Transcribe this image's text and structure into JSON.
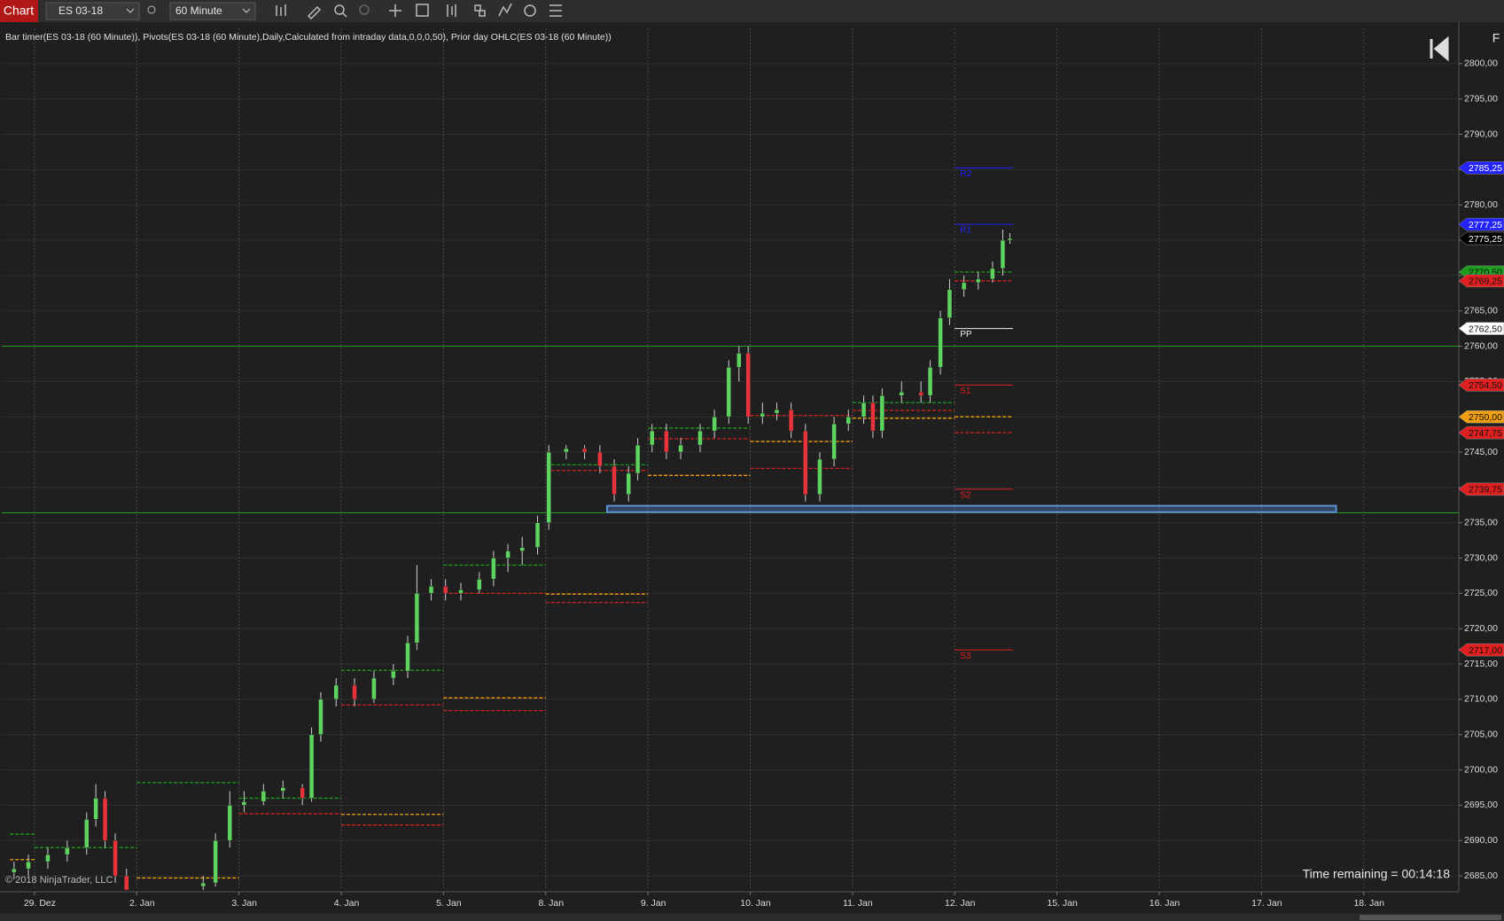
{
  "toolbar": {
    "title": "Chart",
    "instrument": "ES 03-18",
    "interval": "60 Minute"
  },
  "chart_data": {
    "type": "candlestick",
    "indicators": "Bar timer(ES 03-18 (60 Minute)), Pivots(ES 03-18 (60 Minute),Daily,Calculated from intraday data,0,0,0,50), Prior day OHLC(ES 03-18 (60 Minute))",
    "up_color": "#5fd35f",
    "down_color": "#e8333a",
    "x": [
      -0.2,
      -0.06,
      0.13,
      0.32,
      0.51,
      0.6,
      0.69,
      0.79,
      0.9,
      1.65,
      1.77,
      1.91,
      2.05,
      2.24,
      2.43,
      2.62,
      2.71,
      2.8,
      2.95,
      3.13,
      3.32,
      3.51,
      3.65,
      3.74,
      3.88,
      4.02,
      4.17,
      4.35,
      4.49,
      4.63,
      4.77,
      4.92,
      5.03,
      5.2,
      5.38,
      5.53,
      5.67,
      5.81,
      5.9,
      6.04,
      6.18,
      6.32,
      6.51,
      6.65,
      6.79,
      6.89,
      6.98,
      7.12,
      7.26,
      7.4,
      7.54,
      7.68,
      7.82,
      7.96,
      8.11,
      8.2,
      8.29,
      8.48,
      8.67,
      8.76,
      8.86,
      8.95,
      9.09,
      9.23,
      9.37,
      9.47,
      9.54
    ],
    "open": [
      2685.5,
      2686,
      2687,
      2688,
      2689,
      2693,
      2696,
      2690,
      2685,
      2683.5,
      2684,
      2690,
      2695,
      2695.5,
      2697,
      2697.5,
      2696,
      2705,
      2710,
      2712,
      2710,
      2713,
      2714,
      2718,
      2725,
      2726,
      2725,
      2725.5,
      2727,
      2730,
      2731,
      2731.5,
      2735,
      2745,
      2745.5,
      2745,
      2743,
      2739,
      2742,
      2746,
      2748,
      2745,
      2746,
      2748,
      2750,
      2757,
      2759,
      2750,
      2750.5,
      2751,
      2748,
      2739,
      2744,
      2749,
      2750,
      2752,
      2748,
      2753,
      2753.5,
      2753,
      2757,
      2764,
      2768,
      2769,
      2769.5,
      2771,
      2775
    ],
    "high": [
      2687,
      2688,
      2689,
      2690,
      2694,
      2698,
      2697,
      2691,
      2686,
      2685,
      2691,
      2697,
      2697,
      2698,
      2698.5,
      2698,
      2706,
      2711,
      2713,
      2713,
      2714,
      2715,
      2719,
      2729,
      2727,
      2727,
      2726.5,
      2728,
      2731,
      2732,
      2733,
      2736,
      2746,
      2746,
      2746,
      2746,
      2744,
      2743,
      2747,
      2749,
      2749,
      2747,
      2749,
      2751,
      2758,
      2760,
      2760,
      2752,
      2752,
      2752,
      2749,
      2745,
      2750,
      2751,
      2753,
      2753,
      2754,
      2755,
      2755,
      2758,
      2765,
      2769.5,
      2770,
      2770.5,
      2772,
      2776.5,
      2776
    ],
    "low": [
      2684.5,
      2685,
      2686,
      2687,
      2688,
      2692,
      2689,
      2684,
      2683,
      2683,
      2683.5,
      2689,
      2694,
      2695,
      2696,
      2695,
      2695.5,
      2704,
      2709,
      2709,
      2709.5,
      2712,
      2713,
      2717,
      2724,
      2724,
      2724,
      2725,
      2726,
      2728,
      2729,
      2730.5,
      2734,
      2744,
      2744,
      2742,
      2738,
      2738,
      2741,
      2745,
      2744,
      2744,
      2745,
      2747,
      2749,
      2755,
      2749,
      2749,
      2749.5,
      2747,
      2738,
      2738,
      2743,
      2748,
      2749,
      2747,
      2747,
      2752,
      2752,
      2752,
      2756,
      2763,
      2767,
      2768,
      2769,
      2770,
      2774.5
    ],
    "close": [
      2686,
      2687,
      2688,
      2689,
      2693,
      2696,
      2690,
      2685,
      2683,
      2684,
      2690,
      2695,
      2695.5,
      2697,
      2697.5,
      2696,
      2705,
      2710,
      2712,
      2710,
      2713,
      2714,
      2718,
      2725,
      2726,
      2725,
      2725.5,
      2727,
      2730,
      2731,
      2731.5,
      2735,
      2745,
      2745.5,
      2745,
      2743,
      2739,
      2742,
      2746,
      2748,
      2745,
      2746,
      2748,
      2750,
      2757,
      2759,
      2750,
      2750.5,
      2751,
      2748,
      2739,
      2744,
      2749,
      2750,
      2752,
      2748,
      2753,
      2753.5,
      2753,
      2757,
      2764,
      2768,
      2769,
      2769.5,
      2771,
      2775,
      2775.25
    ],
    "xlim": [
      -0.32,
      13.93
    ],
    "xticks": [
      {
        "value": 0,
        "label": "29. Dez"
      },
      {
        "value": 1,
        "label": "2. Jan"
      },
      {
        "value": 2,
        "label": "3. Jan"
      },
      {
        "value": 3,
        "label": "4. Jan"
      },
      {
        "value": 4,
        "label": "5. Jan"
      },
      {
        "value": 5,
        "label": "8. Jan"
      },
      {
        "value": 6,
        "label": "9. Jan"
      },
      {
        "value": 7,
        "label": "10. Jan"
      },
      {
        "value": 8,
        "label": "11. Jan"
      },
      {
        "value": 9,
        "label": "12. Jan"
      },
      {
        "value": 10,
        "label": "15. Jan"
      },
      {
        "value": 11,
        "label": "16. Jan"
      },
      {
        "value": 12,
        "label": "17. Jan"
      },
      {
        "value": 13,
        "label": "18. Jan"
      }
    ],
    "ylim": [
      2683,
      2805
    ],
    "yticks": [
      {
        "value": 2685,
        "label": "2685,00"
      },
      {
        "value": 2690,
        "label": "2690,00"
      },
      {
        "value": 2695,
        "label": "2695,00"
      },
      {
        "value": 2700,
        "label": "2700,00"
      },
      {
        "value": 2705,
        "label": "2705,00"
      },
      {
        "value": 2710,
        "label": "2710,00"
      },
      {
        "value": 2715,
        "label": "2715,00"
      },
      {
        "value": 2720,
        "label": "2720,00"
      },
      {
        "value": 2725,
        "label": "2725,00"
      },
      {
        "value": 2730,
        "label": "2730,00"
      },
      {
        "value": 2735,
        "label": "2735,00"
      },
      {
        "value": 2740,
        "label": "2740,00"
      },
      {
        "value": 2745,
        "label": "2745,00"
      },
      {
        "value": 2750,
        "label": "2750,00"
      },
      {
        "value": 2755,
        "label": "2755,00"
      },
      {
        "value": 2760,
        "label": "2760,00"
      },
      {
        "value": 2765,
        "label": "2765,00"
      },
      {
        "value": 2770,
        "label": "2770,00"
      },
      {
        "value": 2775,
        "label": "2775,00"
      },
      {
        "value": 2780,
        "label": "2780,00"
      },
      {
        "value": 2785,
        "label": "2785,00"
      },
      {
        "value": 2790,
        "label": "2790,00"
      },
      {
        "value": 2795,
        "label": "2795,00"
      },
      {
        "value": 2800,
        "label": "2800,00"
      }
    ],
    "grid": true,
    "pivot_span": [
      9,
      9.57
    ],
    "pivots": [
      {
        "label": "R2",
        "value": 2785.25,
        "color": "#2323ff"
      },
      {
        "label": "R1",
        "value": 2777.25,
        "color": "#2323ff"
      },
      {
        "label": "PP",
        "value": 2762.5,
        "color": "#f0f0f0"
      },
      {
        "label": "S1",
        "value": 2754.5,
        "color": "#e02020"
      },
      {
        "label": "S2",
        "value": 2739.75,
        "color": "#e02020"
      },
      {
        "label": "S3",
        "value": 2717,
        "color": "#e02020"
      }
    ],
    "levels": [
      {
        "x": [
          -0.24,
          0
        ],
        "value": 2690.9,
        "color": "#1e9e1e"
      },
      {
        "x": [
          -0.24,
          0
        ],
        "value": 2687.3,
        "color": "#f0a010"
      },
      {
        "x": [
          0,
          1
        ],
        "value": 2689,
        "color": "#1e9e1e"
      },
      {
        "x": [
          1,
          2
        ],
        "value": 2698.2,
        "color": "#1e9e1e"
      },
      {
        "x": [
          1,
          2
        ],
        "value": 2684.7,
        "color": "#f0a010"
      },
      {
        "x": [
          2,
          3
        ],
        "value": 2696,
        "color": "#1e9e1e"
      },
      {
        "x": [
          2,
          3
        ],
        "value": 2693.8,
        "color": "#d42020"
      },
      {
        "x": [
          3,
          4
        ],
        "value": 2714.1,
        "color": "#1e9e1e"
      },
      {
        "x": [
          3,
          4
        ],
        "value": 2709.2,
        "color": "#d42020"
      },
      {
        "x": [
          3,
          4
        ],
        "value": 2693.7,
        "color": "#f0a010"
      },
      {
        "x": [
          3,
          4
        ],
        "value": 2692.2,
        "color": "#d42020"
      },
      {
        "x": [
          4,
          5
        ],
        "value": 2729,
        "color": "#1e9e1e"
      },
      {
        "x": [
          4,
          5
        ],
        "value": 2725,
        "color": "#d42020"
      },
      {
        "x": [
          4,
          5
        ],
        "value": 2710.2,
        "color": "#f0a010"
      },
      {
        "x": [
          4,
          5
        ],
        "value": 2708.4,
        "color": "#d42020"
      },
      {
        "x": [
          5,
          6
        ],
        "value": 2743.2,
        "color": "#1e9e1e"
      },
      {
        "x": [
          5,
          6
        ],
        "value": 2742.4,
        "color": "#d42020"
      },
      {
        "x": [
          5,
          6
        ],
        "value": 2724.9,
        "color": "#f0a010"
      },
      {
        "x": [
          5,
          6
        ],
        "value": 2723.7,
        "color": "#d42020"
      },
      {
        "x": [
          6,
          7
        ],
        "value": 2748.4,
        "color": "#1e9e1e"
      },
      {
        "x": [
          6,
          7
        ],
        "value": 2746.9,
        "color": "#d42020"
      },
      {
        "x": [
          6,
          7
        ],
        "value": 2741.7,
        "color": "#f0a010"
      },
      {
        "x": [
          7,
          8
        ],
        "value": 2750.2,
        "color": "#d42020"
      },
      {
        "x": [
          7,
          8
        ],
        "value": 2746.5,
        "color": "#f0a010"
      },
      {
        "x": [
          7,
          8
        ],
        "value": 2742.7,
        "color": "#d42020"
      },
      {
        "x": [
          8,
          9
        ],
        "value": 2752,
        "color": "#1e9e1e"
      },
      {
        "x": [
          8,
          9
        ],
        "value": 2750.9,
        "color": "#d42020"
      },
      {
        "x": [
          8,
          9
        ],
        "value": 2749.8,
        "color": "#f0a010"
      },
      {
        "x": [
          9,
          9.57
        ],
        "value": 2770.5,
        "color": "#1e9e1e"
      },
      {
        "x": [
          9,
          9.57
        ],
        "value": 2769.25,
        "color": "#d42020"
      },
      {
        "x": [
          9,
          9.57
        ],
        "value": 2750,
        "color": "#f0a010"
      },
      {
        "x": [
          9,
          9.57
        ],
        "value": 2747.75,
        "color": "#d42020"
      }
    ],
    "hlines": [
      {
        "value": 2760,
        "color": "#1ea01e"
      },
      {
        "value": 2736.4,
        "color": "#1ea01e"
      }
    ],
    "zone": {
      "x": [
        5.6,
        12.73
      ],
      "y": [
        2736.5,
        2737.4
      ],
      "color": "#5b8fd6"
    },
    "price_markers": [
      {
        "value": 2785.25,
        "label": "2785,25",
        "color": "#2323ff",
        "text_color": "#ffffff"
      },
      {
        "value": 2777.25,
        "label": "2777,25",
        "color": "#2323ff",
        "text_color": "#ffffff"
      },
      {
        "value": 2775.25,
        "label": "2775,25",
        "color": "#000000",
        "text_color": "#ffffff"
      },
      {
        "value": 2770.5,
        "label": "2770,50",
        "color": "#1e9e1e",
        "text_color": "#111111"
      },
      {
        "value": 2769.25,
        "label": "2769,25",
        "color": "#e02020",
        "text_color": "#111111"
      },
      {
        "value": 2762.5,
        "label": "2762,50",
        "color": "#ffffff",
        "text_color": "#111111"
      },
      {
        "value": 2754.5,
        "label": "2754,50",
        "color": "#e02020",
        "text_color": "#111111"
      },
      {
        "value": 2750,
        "label": "2750,00",
        "color": "#f0a010",
        "text_color": "#111111"
      },
      {
        "value": 2747.75,
        "label": "2747,75",
        "color": "#e02020",
        "text_color": "#111111"
      },
      {
        "value": 2739.75,
        "label": "2739,75",
        "color": "#e02020",
        "text_color": "#111111"
      },
      {
        "value": 2717,
        "label": "2717,00",
        "color": "#e02020",
        "text_color": "#111111"
      }
    ],
    "time_remaining": "Time remaining = 00:14:18",
    "copyright": "© 2018 NinjaTrader, LLC",
    "corner": "F"
  }
}
